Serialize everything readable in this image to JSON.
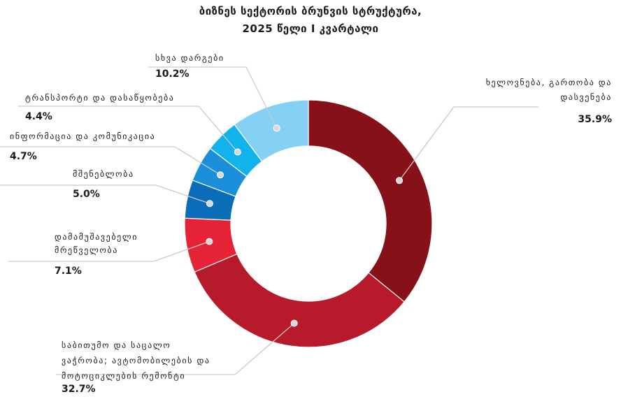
{
  "title": {
    "line1": "ბიზნეს სექტორის ბრუნვის სტრუქტურა,",
    "line2": "2025 წელი I კვარტალი"
  },
  "chart_data": {
    "type": "pie",
    "donut": true,
    "title": "ბიზნეს სექტორის ბრუნვის სტრუქტურა, 2025 წელი I კვარტალი",
    "unit": "%",
    "slices": [
      {
        "label_lines": [
          "ხელოვნება, გართობა და",
          "დასვენება"
        ],
        "value": 35.9,
        "display": "35.9%",
        "color": "#861119"
      },
      {
        "label_lines": [
          "საბითუმო და საცალო",
          "ვაჭრობა; ავტომობილების და",
          "მოტოციკლების რემონტი"
        ],
        "value": 32.7,
        "display": "32.7%",
        "color": "#b71a2a"
      },
      {
        "label_lines": [
          "დამამუშავებელი",
          "მრეწველობა"
        ],
        "value": 7.1,
        "display": "7.1%",
        "color": "#e62236"
      },
      {
        "label_lines": [
          "მშენებლობა"
        ],
        "value": 5.0,
        "display": "5.0%",
        "color": "#0a6db8"
      },
      {
        "label_lines": [
          "ინფორმაცია და კომუნიკაცია"
        ],
        "value": 4.7,
        "display": "4.7%",
        "color": "#1c8fdb"
      },
      {
        "label_lines": [
          "ტრანსპორტი და დასაწყობება"
        ],
        "value": 4.4,
        "display": "4.4%",
        "color": "#12b2ec"
      },
      {
        "label_lines": [
          "სხვა დარგები"
        ],
        "value": 10.2,
        "display": "10.2%",
        "color": "#85d1f6"
      }
    ]
  }
}
